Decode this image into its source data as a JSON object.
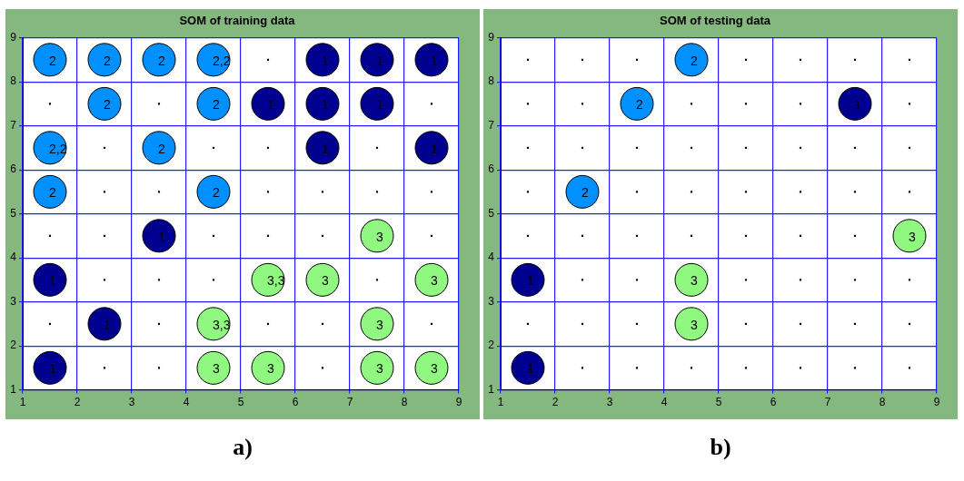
{
  "chart_data": [
    {
      "type": "scatter",
      "title": "SOM of training data",
      "xlim": [
        1,
        9
      ],
      "ylim": [
        1,
        9
      ],
      "xticks": [
        1,
        2,
        3,
        4,
        5,
        6,
        7,
        8,
        9
      ],
      "yticks": [
        1,
        2,
        3,
        4,
        5,
        6,
        7,
        8,
        9
      ],
      "grid": true,
      "legend": false,
      "annotations": [
        "a)",
        {
          "text": "2",
          "x": 1.5,
          "y": 8.5
        },
        {
          "text": "2",
          "x": 2.5,
          "y": 8.5
        },
        {
          "text": "2",
          "x": 3.5,
          "y": 8.5
        },
        {
          "text": "2,2",
          "x": 4.5,
          "y": 8.5
        },
        {
          "text": "2",
          "x": 2.5,
          "y": 7.5
        },
        {
          "text": "2",
          "x": 4.5,
          "y": 7.5
        },
        {
          "text": "2,2",
          "x": 1.5,
          "y": 6.5
        },
        {
          "text": "2",
          "x": 3.5,
          "y": 6.5
        },
        {
          "text": "2",
          "x": 1.5,
          "y": 5.5
        },
        {
          "text": "2",
          "x": 4.5,
          "y": 5.5
        },
        {
          "text": "1",
          "x": 6.5,
          "y": 8.5
        },
        {
          "text": "1",
          "x": 7.5,
          "y": 8.5
        },
        {
          "text": "1",
          "x": 8.5,
          "y": 8.5
        },
        {
          "text": "1",
          "x": 5.5,
          "y": 7.5
        },
        {
          "text": "1",
          "x": 6.5,
          "y": 7.5
        },
        {
          "text": "1",
          "x": 7.5,
          "y": 7.5
        },
        {
          "text": "1",
          "x": 6.5,
          "y": 6.5
        },
        {
          "text": "1",
          "x": 8.5,
          "y": 6.5
        },
        {
          "text": "1",
          "x": 3.5,
          "y": 4.5
        },
        {
          "text": "1",
          "x": 1.5,
          "y": 3.5
        },
        {
          "text": "1",
          "x": 2.5,
          "y": 2.5
        },
        {
          "text": "1",
          "x": 1.5,
          "y": 1.5
        },
        {
          "text": "3",
          "x": 7.5,
          "y": 4.5
        },
        {
          "text": "3,3",
          "x": 5.5,
          "y": 3.5
        },
        {
          "text": "3",
          "x": 6.5,
          "y": 3.5
        },
        {
          "text": "3",
          "x": 8.5,
          "y": 3.5
        },
        {
          "text": "3,3",
          "x": 4.5,
          "y": 2.5
        },
        {
          "text": "3",
          "x": 7.5,
          "y": 2.5
        },
        {
          "text": "3",
          "x": 4.5,
          "y": 1.5
        },
        {
          "text": "3",
          "x": 5.5,
          "y": 1.5
        },
        {
          "text": "3",
          "x": 7.5,
          "y": 1.5
        },
        {
          "text": "3",
          "x": 8.5,
          "y": 1.5
        }
      ],
      "series": [
        {
          "color": "#0090ff",
          "marker": "circle",
          "x": [
            1.5,
            2.5,
            3.5,
            4.5,
            2.5,
            4.5,
            1.5,
            3.5,
            1.5,
            4.5
          ],
          "values": [
            8.5,
            8.5,
            8.5,
            8.5,
            7.5,
            7.5,
            6.5,
            6.5,
            5.5,
            5.5
          ]
        },
        {
          "color": "#000090",
          "marker": "circle",
          "x": [
            6.5,
            7.5,
            8.5,
            5.5,
            6.5,
            7.5,
            6.5,
            8.5,
            3.5,
            1.5,
            2.5,
            1.5
          ],
          "values": [
            8.5,
            8.5,
            8.5,
            7.5,
            7.5,
            7.5,
            6.5,
            6.5,
            4.5,
            3.5,
            2.5,
            1.5
          ]
        },
        {
          "color": "#90f880",
          "marker": "circle",
          "x": [
            7.5,
            5.5,
            6.5,
            8.5,
            4.5,
            7.5,
            4.5,
            5.5,
            7.5,
            8.5
          ],
          "values": [
            4.5,
            3.5,
            3.5,
            3.5,
            2.5,
            2.5,
            1.5,
            1.5,
            1.5,
            1.5
          ]
        },
        {
          "color": "#000000",
          "marker": "square",
          "x": [
            5.5,
            1.5,
            3.5,
            8.5,
            2.5,
            4.5,
            5.5,
            7.5,
            2.5,
            3.5,
            5.5,
            6.5,
            7.5,
            8.5,
            1.5,
            2.5,
            4.5,
            5.5,
            6.5,
            8.5,
            2.5,
            3.5,
            4.5,
            7.5,
            1.5,
            3.5,
            5.5,
            6.5,
            8.5,
            2.5,
            3.5,
            6.5
          ],
          "values": [
            8.5,
            7.5,
            7.5,
            7.5,
            6.5,
            6.5,
            6.5,
            6.5,
            5.5,
            5.5,
            5.5,
            5.5,
            5.5,
            5.5,
            4.5,
            4.5,
            4.5,
            4.5,
            4.5,
            4.5,
            3.5,
            3.5,
            3.5,
            3.5,
            2.5,
            2.5,
            2.5,
            2.5,
            2.5,
            1.5,
            1.5,
            1.5
          ]
        }
      ]
    },
    {
      "type": "scatter",
      "title": "SOM of testing data",
      "xlim": [
        1,
        9
      ],
      "ylim": [
        1,
        9
      ],
      "xticks": [
        1,
        2,
        3,
        4,
        5,
        6,
        7,
        8,
        9
      ],
      "yticks": [
        1,
        2,
        3,
        4,
        5,
        6,
        7,
        8,
        9
      ],
      "grid": true,
      "legend": false,
      "annotations": [
        "b)",
        {
          "text": "2",
          "x": 4.5,
          "y": 8.5
        },
        {
          "text": "2",
          "x": 3.5,
          "y": 7.5
        },
        {
          "text": "2",
          "x": 2.5,
          "y": 5.5
        },
        {
          "text": "1",
          "x": 7.5,
          "y": 7.5
        },
        {
          "text": "1",
          "x": 1.5,
          "y": 3.5
        },
        {
          "text": "1",
          "x": 1.5,
          "y": 1.5
        },
        {
          "text": "3",
          "x": 8.5,
          "y": 4.5
        },
        {
          "text": "3",
          "x": 4.5,
          "y": 3.5
        },
        {
          "text": "3",
          "x": 4.5,
          "y": 2.5
        }
      ],
      "series": [
        {
          "color": "#0090ff",
          "marker": "circle",
          "x": [
            4.5,
            3.5,
            2.5
          ],
          "values": [
            8.5,
            7.5,
            5.5
          ]
        },
        {
          "color": "#000090",
          "marker": "circle",
          "x": [
            7.5,
            1.5,
            1.5
          ],
          "values": [
            7.5,
            3.5,
            1.5
          ]
        },
        {
          "color": "#90f880",
          "marker": "circle",
          "x": [
            8.5,
            4.5,
            4.5
          ],
          "values": [
            4.5,
            3.5,
            2.5
          ]
        },
        {
          "color": "#000000",
          "marker": "square",
          "x": [
            1.5,
            2.5,
            3.5,
            5.5,
            6.5,
            7.5,
            8.5,
            1.5,
            2.5,
            4.5,
            5.5,
            6.5,
            8.5,
            1.5,
            2.5,
            3.5,
            4.5,
            5.5,
            6.5,
            7.5,
            8.5,
            1.5,
            3.5,
            4.5,
            5.5,
            6.5,
            7.5,
            8.5,
            1.5,
            2.5,
            3.5,
            4.5,
            5.5,
            6.5,
            7.5,
            2.5,
            3.5,
            5.5,
            6.5,
            7.5,
            8.5,
            1.5,
            2.5,
            3.5,
            5.5,
            6.5,
            7.5,
            8.5,
            2.5,
            3.5,
            4.5,
            5.5,
            6.5,
            7.5,
            8.5
          ],
          "values": [
            8.5,
            8.5,
            8.5,
            8.5,
            8.5,
            8.5,
            8.5,
            7.5,
            7.5,
            7.5,
            7.5,
            7.5,
            7.5,
            6.5,
            6.5,
            6.5,
            6.5,
            6.5,
            6.5,
            6.5,
            6.5,
            5.5,
            5.5,
            5.5,
            5.5,
            5.5,
            5.5,
            5.5,
            4.5,
            4.5,
            4.5,
            4.5,
            4.5,
            4.5,
            4.5,
            3.5,
            3.5,
            3.5,
            3.5,
            3.5,
            3.5,
            2.5,
            2.5,
            2.5,
            2.5,
            2.5,
            2.5,
            2.5,
            1.5,
            1.5,
            1.5,
            1.5,
            1.5,
            1.5,
            1.5
          ]
        }
      ]
    }
  ]
}
